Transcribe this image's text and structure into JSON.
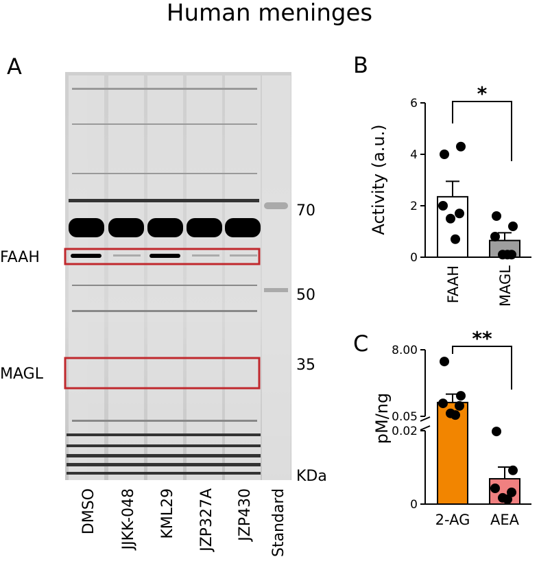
{
  "title": "Human meninges",
  "panel_a": {
    "label": "A",
    "lanes": [
      "DMSO",
      "JJKK-048",
      "KML29",
      "JZP327A",
      "JZP430",
      "Standard"
    ],
    "markers": [
      70,
      50,
      35,
      "KDa"
    ],
    "bands": [
      "FAAH",
      "MAGL"
    ]
  },
  "chart_data": [
    {
      "type": "bar",
      "panel": "B",
      "ylabel": "Activity (a.u.)",
      "categories": [
        "FAAH",
        "MAGL"
      ],
      "values": [
        2.35,
        0.65
      ],
      "errors": [
        0.6,
        0.3
      ],
      "points": [
        [
          4.0,
          4.3,
          2.0,
          1.7,
          1.5,
          0.7
        ],
        [
          1.6,
          1.2,
          0.8,
          0.1,
          0.1,
          0.1
        ]
      ],
      "colors": [
        "#ffffff",
        "#9e9e9e"
      ],
      "ylim": [
        0,
        6
      ],
      "yticks": [
        0,
        2,
        4,
        6
      ],
      "significance": "*"
    },
    {
      "type": "bar",
      "panel": "C",
      "ylabel": "pM/ng",
      "categories": [
        "2-AG",
        "AEA"
      ],
      "values": [
        1.7,
        0.0069
      ],
      "errors": [
        1.0,
        0.0032
      ],
      "points": [
        [
          6.6,
          2.5,
          1.6,
          1.3,
          0.4,
          0.2
        ],
        [
          0.0198,
          0.0092,
          0.0043,
          0.0032,
          0.0017,
          0.0013
        ]
      ],
      "colors": [
        "#f28500",
        "#f08080"
      ],
      "ysegments": [
        [
          0,
          0.02
        ],
        [
          0.05,
          8
        ]
      ],
      "yticks": [
        0,
        0.02,
        0.05,
        {
          "value": 8,
          "label": "8.00"
        }
      ],
      "significance": "**"
    }
  ]
}
